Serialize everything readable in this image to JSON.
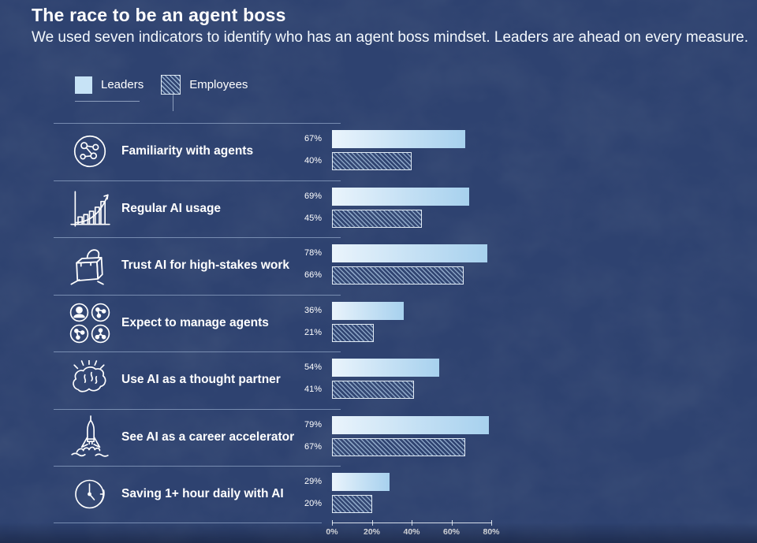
{
  "header": {
    "title": "The race to be an agent boss",
    "subtitle": "We used seven indicators to identify who has an agent boss mindset. Leaders are ahead on every measure."
  },
  "legend": {
    "leaders_label": "Leaders",
    "employees_label": "Employees"
  },
  "chart_data": {
    "type": "bar",
    "orientation": "horizontal",
    "title": "The race to be an agent boss",
    "categories": [
      "Familiarity with agents",
      "Regular AI usage",
      "Trust AI for high-stakes work",
      "Expect to manage agents",
      "Use AI as a thought partner",
      "See AI as a career accelerator",
      "Saving 1+ hour daily with AI"
    ],
    "series": [
      {
        "name": "Leaders",
        "values": [
          67,
          69,
          78,
          36,
          54,
          79,
          29
        ]
      },
      {
        "name": "Employees",
        "values": [
          40,
          45,
          66,
          21,
          41,
          67,
          20
        ]
      }
    ],
    "value_suffix": "%",
    "x_axis": {
      "min": 0,
      "max": 80,
      "ticks": [
        "0%",
        "20%",
        "40%",
        "60%",
        "80%"
      ]
    },
    "grid": false,
    "legend_position": "top-left",
    "icons": [
      "network-agents",
      "growth-chart",
      "open-lock",
      "manage-agents",
      "brain",
      "rocket",
      "clock"
    ]
  },
  "colors": {
    "background": "#2e4270",
    "text": "#ffffff",
    "leaders_bar_start": "#eaf4fc",
    "leaders_bar_end": "#a7d1ee",
    "hatch_stripe": "#bcd9f2",
    "divider": "#b9cfe9"
  }
}
